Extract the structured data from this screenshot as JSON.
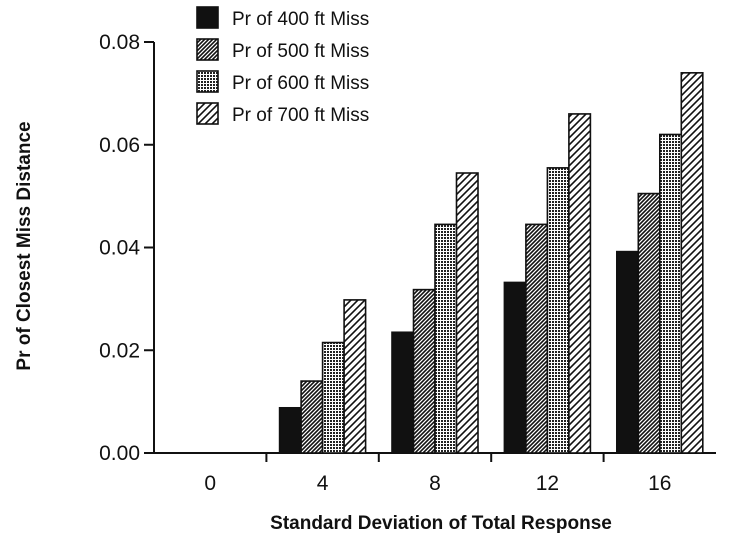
{
  "chart_data": {
    "type": "bar",
    "title": "",
    "xlabel": "Standard  Deviation  of  Total  Response",
    "ylabel": "Pr  of  Closest  Miss  Distance",
    "categories": [
      "0",
      "4",
      "8",
      "12",
      "16"
    ],
    "ylim": [
      0,
      0.08
    ],
    "yticks": [
      "0.00",
      "0.02",
      "0.04",
      "0.06",
      "0.08"
    ],
    "grid": false,
    "legend_position": "top-left",
    "series": [
      {
        "name": "Pr of 400 ft Miss",
        "pattern": "solid",
        "values": [
          0,
          0.0088,
          0.0235,
          0.0332,
          0.0392
        ]
      },
      {
        "name": "Pr of 500 ft Miss",
        "pattern": "hatch-dense",
        "values": [
          0,
          0.014,
          0.0318,
          0.0445,
          0.0505
        ]
      },
      {
        "name": "Pr of 600 ft Miss",
        "pattern": "stipple",
        "values": [
          0,
          0.0215,
          0.0445,
          0.0555,
          0.062
        ]
      },
      {
        "name": "Pr of 700 ft Miss",
        "pattern": "hatch-light",
        "values": [
          0,
          0.0298,
          0.0545,
          0.066,
          0.074
        ]
      }
    ],
    "colors": {
      "ink": "#111111",
      "background": "#ffffff"
    }
  }
}
